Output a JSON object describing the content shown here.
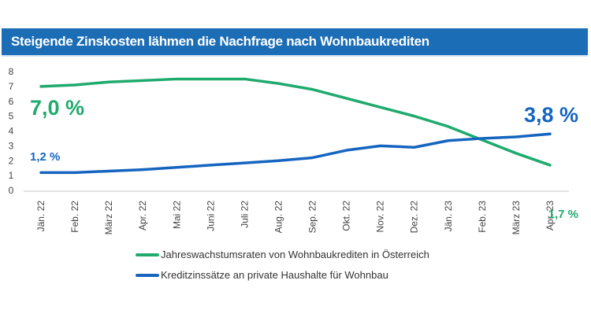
{
  "chart_data": {
    "type": "line",
    "title": "Steigende Zinskosten lähmen die Nachfrage nach Wohnbaukrediten",
    "categories": [
      "Jän. 22",
      "Feb. 22",
      "März 22",
      "Apr. 22",
      "Mai 22",
      "Juni 22",
      "Juli 22",
      "Aug. 22",
      "Sep. 22",
      "Okt. 22",
      "Nov. 22",
      "Dez. 22",
      "Jän. 23",
      "Feb. 23",
      "März 23",
      "Apr. 23"
    ],
    "yticks": [
      "0",
      "1",
      "2",
      "3",
      "4",
      "5",
      "6",
      "7",
      "8"
    ],
    "ylim": [
      0,
      8
    ],
    "grid": false,
    "legend_placement": "bottom",
    "series": [
      {
        "name": "Jahreswachstumsraten von Wohnbaukrediten in Österreich",
        "color": "#1faa6e",
        "values": [
          7.0,
          7.1,
          7.3,
          7.4,
          7.5,
          7.5,
          7.5,
          7.2,
          6.8,
          6.2,
          5.6,
          5.0,
          4.3,
          3.4,
          2.5,
          1.7
        ],
        "start_label": "7,0 %",
        "end_label": "1,7 %"
      },
      {
        "name": "Kreditzinssätze an private Haushalte für Wohnbau",
        "color": "#1565c0",
        "values": [
          1.2,
          1.2,
          1.3,
          1.4,
          1.55,
          1.7,
          1.85,
          2.0,
          2.2,
          2.7,
          3.0,
          2.9,
          3.35,
          3.5,
          3.6,
          3.8
        ],
        "start_label": "1,2 %",
        "end_label": "3,8 %"
      }
    ]
  }
}
